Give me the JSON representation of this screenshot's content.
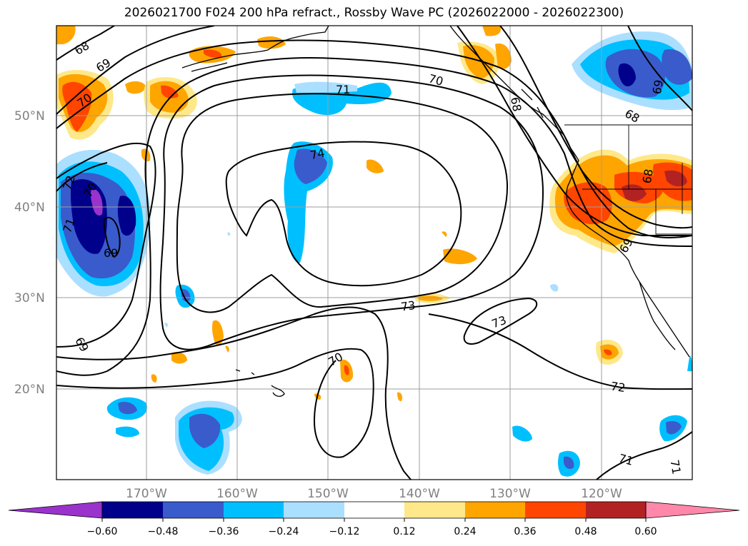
{
  "title": "2026021700 F024 200 hPa refract., Rossby Wave PC (2026022000 - 2026022300)",
  "map": {
    "lat_labels": [
      "50°N",
      "40°N",
      "30°N",
      "20°N"
    ],
    "lon_labels": [
      "170°W",
      "160°W",
      "150°W",
      "140°W",
      "130°W",
      "120°W"
    ],
    "contour_labels": [
      "68",
      "69",
      "70",
      "71",
      "70",
      "68",
      "68",
      "74",
      "72",
      "70",
      "71",
      "69",
      "73",
      "73",
      "69",
      "70",
      "72",
      "71",
      "71",
      "69",
      "69",
      "68"
    ]
  },
  "colorbar": {
    "ticks": [
      "−0.60",
      "−0.48",
      "−0.36",
      "−0.24",
      "−0.12",
      "0.12",
      "0.24",
      "0.36",
      "0.48",
      "0.60"
    ],
    "colors": [
      "#9933cc",
      "#00008b",
      "#3a5bcc",
      "#00bfff",
      "#aadfff",
      "#ffffff",
      "#ffe88a",
      "#ffa500",
      "#ff4500",
      "#b22222",
      "#ff88aa"
    ]
  },
  "colors": {
    "grid": "#9e9e9e",
    "contour": "#000000",
    "coast": "#000000"
  }
}
